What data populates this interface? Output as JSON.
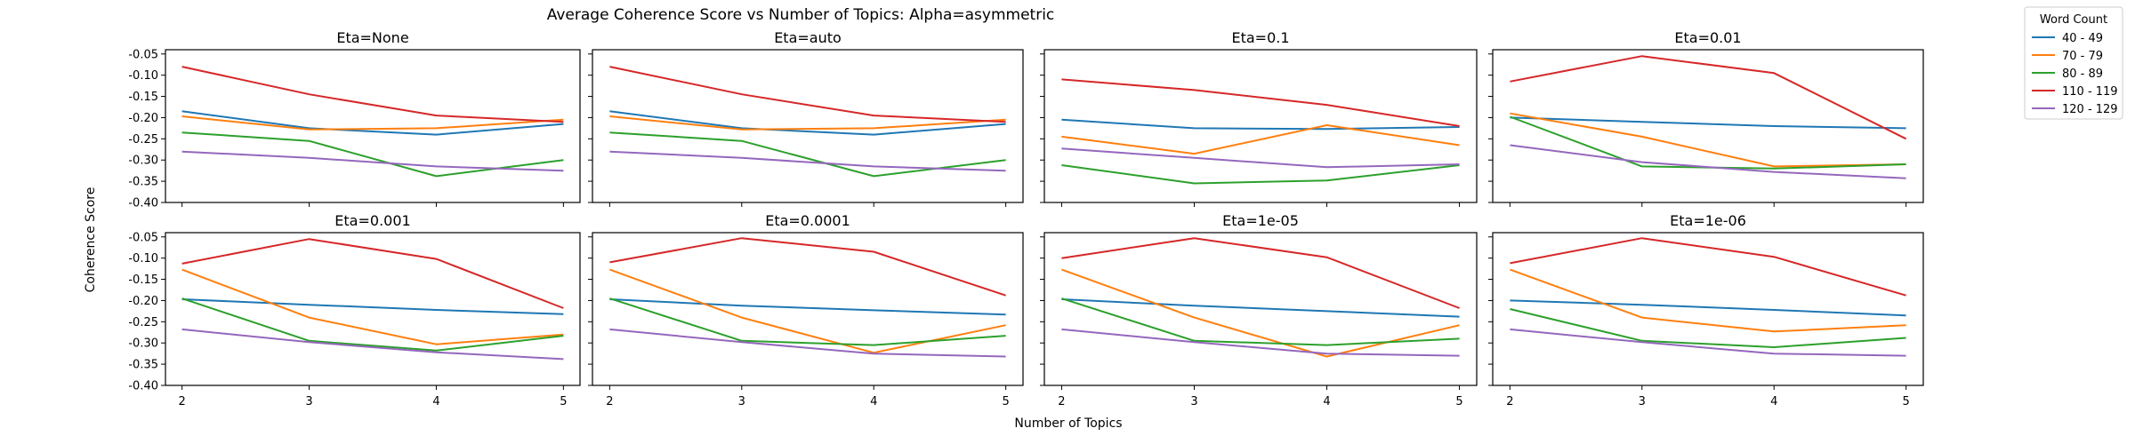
{
  "title": "Average Coherence Score vs Number of Topics: Alpha=asymmetric",
  "xlabel": "Number of Topics",
  "ylabel": "Coherence Score",
  "legend": {
    "title": "Word Count",
    "placement": "top-right outside",
    "entries": [
      {
        "name": "40 - 49",
        "color": "#1f77b4"
      },
      {
        "name": "70 - 79",
        "color": "#ff7f0e"
      },
      {
        "name": "80 - 89",
        "color": "#2ca02c"
      },
      {
        "name": "110 - 119",
        "color": "#d62728"
      },
      {
        "name": "120 - 129",
        "color": "#9467bd"
      }
    ]
  },
  "chart_data": {
    "type": "line",
    "title": "Average Coherence Score vs Number of Topics: Alpha=asymmetric",
    "xlabel": "Number of Topics",
    "ylabel": "Coherence Score",
    "x": [
      2,
      3,
      4,
      5
    ],
    "xticks": [
      "2",
      "3",
      "4",
      "5"
    ],
    "ylim": [
      -0.4,
      -0.04
    ],
    "yticks": [
      "-0.05",
      "-0.10",
      "-0.15",
      "-0.20",
      "-0.25",
      "-0.30",
      "-0.35",
      "-0.40"
    ],
    "ytick_values": [
      -0.05,
      -0.1,
      -0.15,
      -0.2,
      -0.25,
      -0.3,
      -0.35,
      -0.4
    ],
    "grid": false,
    "legend_placement": "top-right outside",
    "panels": [
      {
        "title": "Eta=None",
        "series": [
          {
            "name": "40 - 49",
            "values": [
              -0.185,
              -0.225,
              -0.24,
              -0.215
            ]
          },
          {
            "name": "70 - 79",
            "values": [
              -0.197,
              -0.228,
              -0.225,
              -0.205
            ]
          },
          {
            "name": "80 - 89",
            "values": [
              -0.235,
              -0.255,
              -0.338,
              -0.3
            ]
          },
          {
            "name": "110 - 119",
            "values": [
              -0.08,
              -0.145,
              -0.195,
              -0.21
            ]
          },
          {
            "name": "120 - 129",
            "values": [
              -0.28,
              -0.295,
              -0.315,
              -0.325
            ]
          }
        ]
      },
      {
        "title": "Eta=auto",
        "series": [
          {
            "name": "40 - 49",
            "values": [
              -0.185,
              -0.225,
              -0.24,
              -0.215
            ]
          },
          {
            "name": "70 - 79",
            "values": [
              -0.197,
              -0.228,
              -0.225,
              -0.205
            ]
          },
          {
            "name": "80 - 89",
            "values": [
              -0.235,
              -0.255,
              -0.338,
              -0.3
            ]
          },
          {
            "name": "110 - 119",
            "values": [
              -0.08,
              -0.145,
              -0.195,
              -0.21
            ]
          },
          {
            "name": "120 - 129",
            "values": [
              -0.28,
              -0.295,
              -0.315,
              -0.325
            ]
          }
        ]
      },
      {
        "title": "Eta=0.1",
        "series": [
          {
            "name": "40 - 49",
            "values": [
              -0.205,
              -0.225,
              -0.227,
              -0.222
            ]
          },
          {
            "name": "70 - 79",
            "values": [
              -0.245,
              -0.285,
              -0.218,
              -0.265
            ]
          },
          {
            "name": "80 - 89",
            "values": [
              -0.312,
              -0.355,
              -0.348,
              -0.312
            ]
          },
          {
            "name": "110 - 119",
            "values": [
              -0.11,
              -0.135,
              -0.17,
              -0.22
            ]
          },
          {
            "name": "120 - 129",
            "values": [
              -0.273,
              -0.295,
              -0.317,
              -0.31
            ]
          }
        ]
      },
      {
        "title": "Eta=0.01",
        "series": [
          {
            "name": "40 - 49",
            "values": [
              -0.2,
              -0.21,
              -0.22,
              -0.225
            ]
          },
          {
            "name": "70 - 79",
            "values": [
              -0.19,
              -0.245,
              -0.315,
              -0.31
            ]
          },
          {
            "name": "80 - 89",
            "values": [
              -0.198,
              -0.315,
              -0.32,
              -0.31
            ]
          },
          {
            "name": "110 - 119",
            "values": [
              -0.115,
              -0.055,
              -0.095,
              -0.25
            ]
          },
          {
            "name": "120 - 129",
            "values": [
              -0.265,
              -0.305,
              -0.328,
              -0.343
            ]
          }
        ]
      },
      {
        "title": "Eta=0.001",
        "series": [
          {
            "name": "40 - 49",
            "values": [
              -0.197,
              -0.21,
              -0.222,
              -0.232
            ]
          },
          {
            "name": "70 - 79",
            "values": [
              -0.127,
              -0.24,
              -0.303,
              -0.28
            ]
          },
          {
            "name": "80 - 89",
            "values": [
              -0.195,
              -0.295,
              -0.318,
              -0.283
            ]
          },
          {
            "name": "110 - 119",
            "values": [
              -0.113,
              -0.055,
              -0.102,
              -0.218
            ]
          },
          {
            "name": "120 - 129",
            "values": [
              -0.268,
              -0.298,
              -0.322,
              -0.338
            ]
          }
        ]
      },
      {
        "title": "Eta=0.0001",
        "series": [
          {
            "name": "40 - 49",
            "values": [
              -0.197,
              -0.212,
              -0.223,
              -0.233
            ]
          },
          {
            "name": "70 - 79",
            "values": [
              -0.127,
              -0.24,
              -0.323,
              -0.258
            ]
          },
          {
            "name": "80 - 89",
            "values": [
              -0.195,
              -0.295,
              -0.305,
              -0.283
            ]
          },
          {
            "name": "110 - 119",
            "values": [
              -0.11,
              -0.053,
              -0.085,
              -0.188
            ]
          },
          {
            "name": "120 - 129",
            "values": [
              -0.268,
              -0.298,
              -0.325,
              -0.332
            ]
          }
        ]
      },
      {
        "title": "Eta=1e-05",
        "series": [
          {
            "name": "40 - 49",
            "values": [
              -0.197,
              -0.212,
              -0.225,
              -0.238
            ]
          },
          {
            "name": "70 - 79",
            "values": [
              -0.127,
              -0.24,
              -0.332,
              -0.258
            ]
          },
          {
            "name": "80 - 89",
            "values": [
              -0.195,
              -0.295,
              -0.305,
              -0.29
            ]
          },
          {
            "name": "110 - 119",
            "values": [
              -0.1,
              -0.053,
              -0.098,
              -0.218
            ]
          },
          {
            "name": "120 - 129",
            "values": [
              -0.268,
              -0.298,
              -0.325,
              -0.33
            ]
          }
        ]
      },
      {
        "title": "Eta=1e-06",
        "series": [
          {
            "name": "40 - 49",
            "values": [
              -0.2,
              -0.21,
              -0.222,
              -0.235
            ]
          },
          {
            "name": "70 - 79",
            "values": [
              -0.127,
              -0.24,
              -0.273,
              -0.258
            ]
          },
          {
            "name": "80 - 89",
            "values": [
              -0.22,
              -0.295,
              -0.31,
              -0.288
            ]
          },
          {
            "name": "110 - 119",
            "values": [
              -0.112,
              -0.053,
              -0.097,
              -0.188
            ]
          },
          {
            "name": "120 - 129",
            "values": [
              -0.268,
              -0.298,
              -0.325,
              -0.33
            ]
          }
        ]
      }
    ]
  }
}
